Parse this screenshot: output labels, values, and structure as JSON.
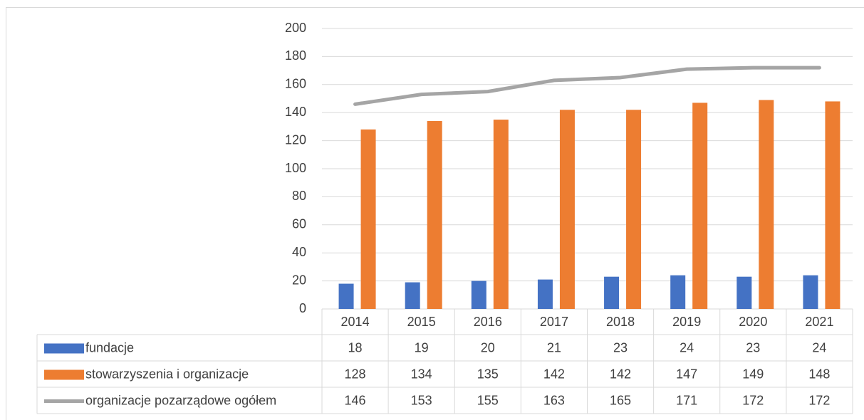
{
  "chart_data": {
    "type": "bar",
    "categories": [
      "2014",
      "2015",
      "2016",
      "2017",
      "2018",
      "2019",
      "2020",
      "2021"
    ],
    "series": [
      {
        "name": "fundacje",
        "color": "#4472c4",
        "values": [
          18,
          19,
          20,
          21,
          23,
          24,
          23,
          24
        ]
      },
      {
        "name": "stowarzyszenia i organizacje",
        "color": "#ed7d31",
        "values": [
          128,
          134,
          135,
          142,
          142,
          147,
          149,
          148
        ]
      },
      {
        "name": "organizacje pozarządowe ogółem",
        "color": "#a5a5a5",
        "type": "line",
        "values": [
          146,
          153,
          155,
          163,
          165,
          171,
          172,
          172
        ]
      }
    ],
    "ylim": [
      0,
      200
    ],
    "yticks": [
      0,
      20,
      40,
      60,
      80,
      100,
      120,
      140,
      160,
      180,
      200
    ],
    "grid": true
  }
}
